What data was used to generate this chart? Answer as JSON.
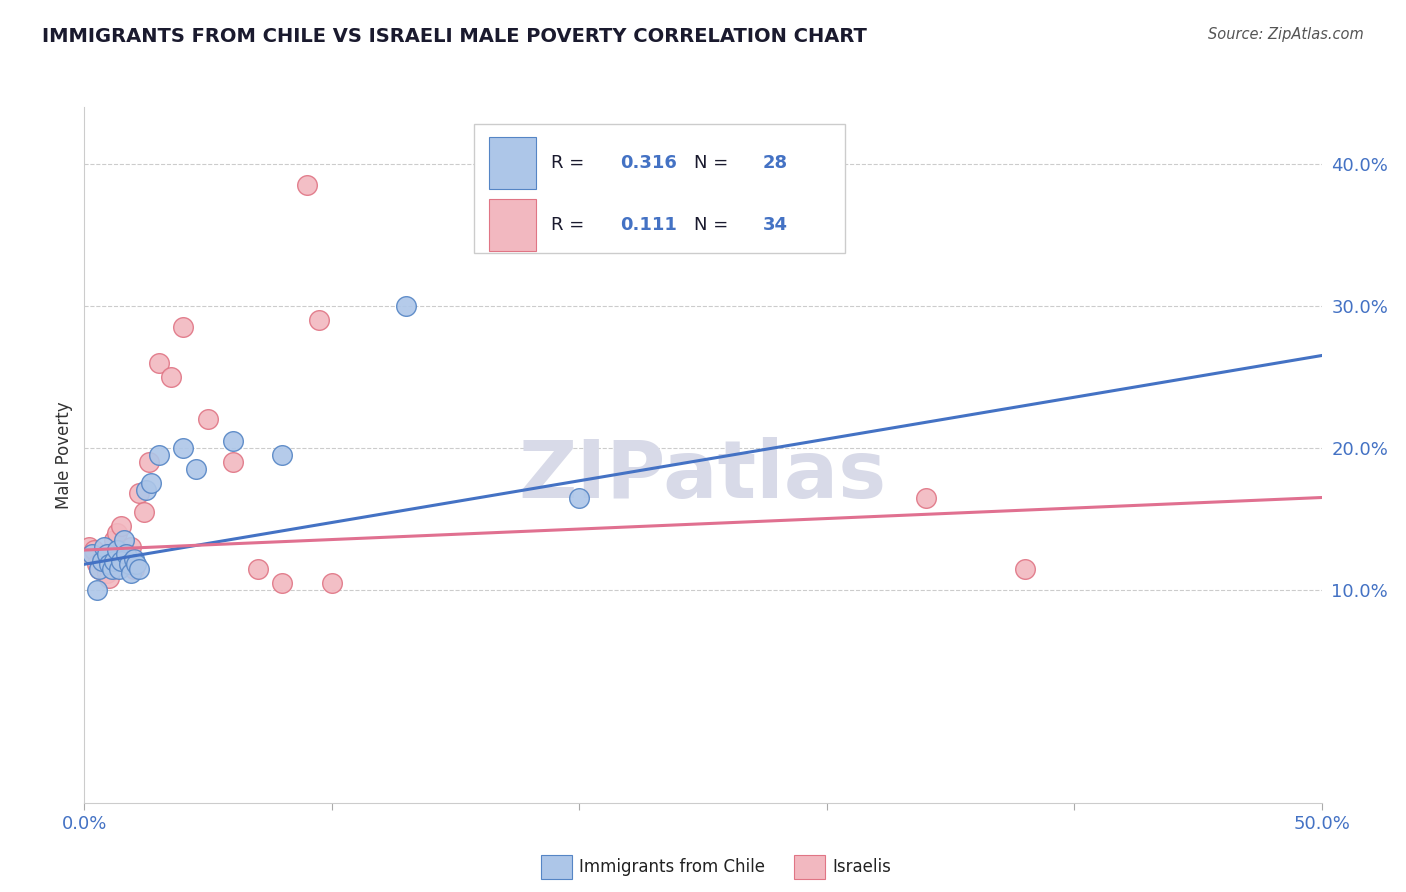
{
  "title": "IMMIGRANTS FROM CHILE VS ISRAELI MALE POVERTY CORRELATION CHART",
  "source": "Source: ZipAtlas.com",
  "ylabel": "Male Poverty",
  "xlim": [
    0.0,
    0.5
  ],
  "ylim": [
    -0.05,
    0.44
  ],
  "xticks": [
    0.0,
    0.1,
    0.2,
    0.3,
    0.4,
    0.5
  ],
  "xticklabels": [
    "0.0%",
    "",
    "",
    "",
    "",
    "50.0%"
  ],
  "yticks_right": [
    0.1,
    0.2,
    0.3,
    0.4
  ],
  "ytick_labels_right": [
    "10.0%",
    "20.0%",
    "30.0%",
    "40.0%"
  ],
  "grid_yticks": [
    0.1,
    0.2,
    0.3,
    0.4
  ],
  "blue_R": "0.316",
  "blue_N": "28",
  "pink_R": "0.111",
  "pink_N": "34",
  "blue_color": "#adc6e8",
  "pink_color": "#f2b8c0",
  "blue_edge_color": "#5585c5",
  "pink_edge_color": "#e07585",
  "blue_line_color": "#4472c4",
  "pink_line_color": "#e07090",
  "legend_text_color": "#1a1a2e",
  "legend_val_color": "#4472c4",
  "watermark_color": "#d8dae8",
  "blue_scatter_x": [
    0.003,
    0.005,
    0.006,
    0.007,
    0.008,
    0.009,
    0.01,
    0.011,
    0.012,
    0.013,
    0.014,
    0.015,
    0.016,
    0.017,
    0.018,
    0.019,
    0.02,
    0.021,
    0.022,
    0.025,
    0.027,
    0.03,
    0.04,
    0.045,
    0.06,
    0.08,
    0.13,
    0.2
  ],
  "blue_scatter_y": [
    0.125,
    0.1,
    0.115,
    0.12,
    0.13,
    0.125,
    0.118,
    0.115,
    0.12,
    0.128,
    0.115,
    0.12,
    0.135,
    0.125,
    0.118,
    0.112,
    0.122,
    0.118,
    0.115,
    0.17,
    0.175,
    0.195,
    0.2,
    0.185,
    0.205,
    0.195,
    0.3,
    0.165
  ],
  "pink_scatter_x": [
    0.002,
    0.003,
    0.004,
    0.005,
    0.006,
    0.007,
    0.008,
    0.009,
    0.01,
    0.011,
    0.012,
    0.013,
    0.014,
    0.015,
    0.016,
    0.017,
    0.018,
    0.019,
    0.02,
    0.022,
    0.024,
    0.026,
    0.03,
    0.035,
    0.04,
    0.05,
    0.06,
    0.07,
    0.08,
    0.09,
    0.095,
    0.1,
    0.34,
    0.38
  ],
  "pink_scatter_y": [
    0.13,
    0.125,
    0.128,
    0.118,
    0.115,
    0.122,
    0.118,
    0.112,
    0.108,
    0.125,
    0.135,
    0.14,
    0.128,
    0.145,
    0.118,
    0.125,
    0.12,
    0.13,
    0.115,
    0.168,
    0.155,
    0.19,
    0.26,
    0.25,
    0.285,
    0.22,
    0.19,
    0.115,
    0.105,
    0.385,
    0.29,
    0.105,
    0.165,
    0.115
  ],
  "blue_line_x": [
    0.0,
    0.5
  ],
  "blue_line_y_start": 0.118,
  "blue_line_y_end": 0.265,
  "pink_line_x": [
    0.0,
    0.5
  ],
  "pink_line_y_start": 0.128,
  "pink_line_y_end": 0.165
}
